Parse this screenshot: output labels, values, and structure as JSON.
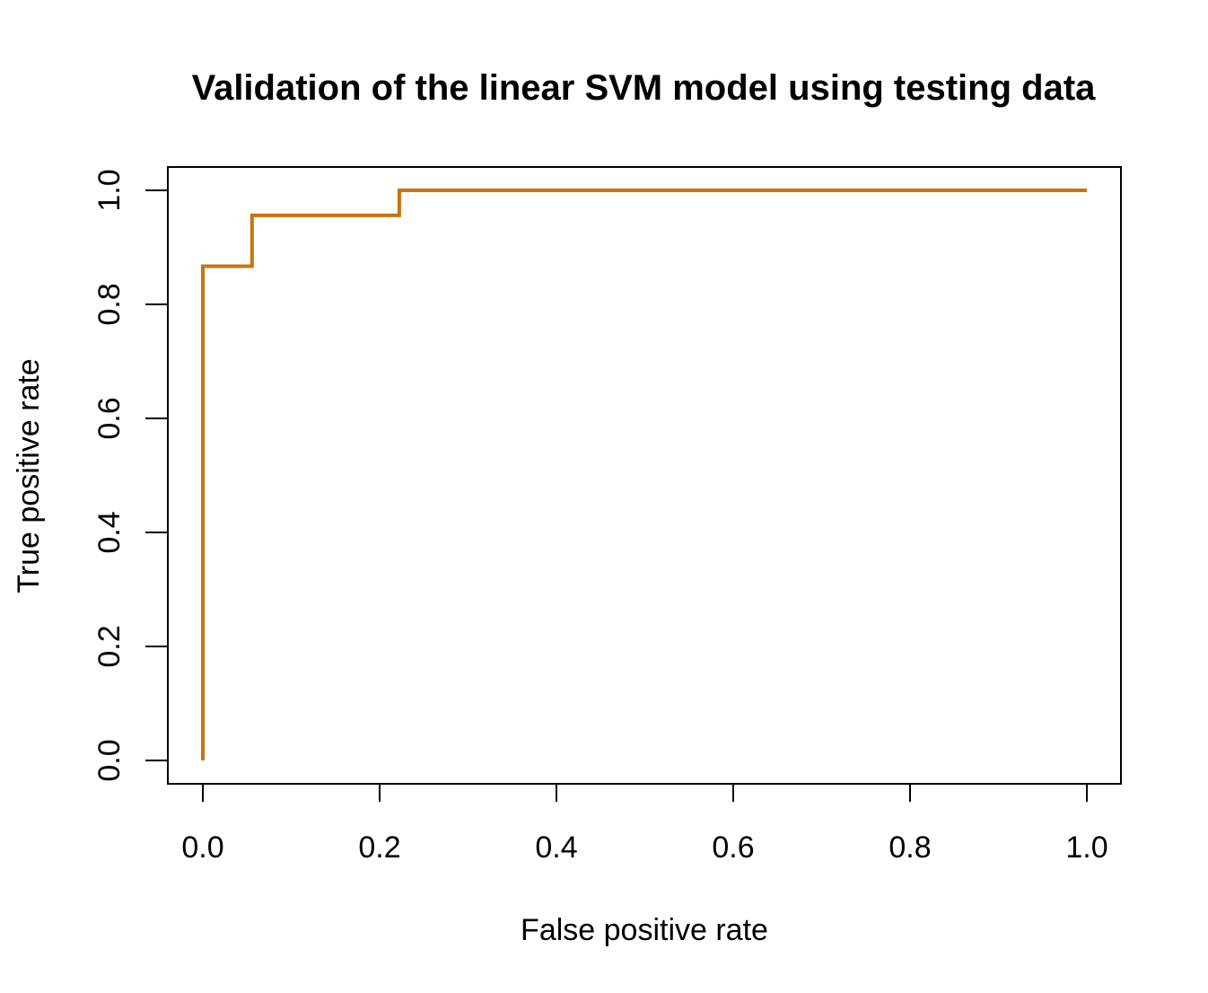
{
  "chart_data": {
    "type": "line",
    "title": "Validation of the linear SVM model using testing data",
    "xlabel": "False positive rate",
    "ylabel": "True positive rate",
    "xlim": [
      0.0,
      1.0
    ],
    "ylim": [
      0.0,
      1.0
    ],
    "xticks": [
      "0.0",
      "0.2",
      "0.4",
      "0.6",
      "0.8",
      "1.0"
    ],
    "yticks": [
      "0.0",
      "0.2",
      "0.4",
      "0.6",
      "0.8",
      "1.0"
    ],
    "grid": false,
    "legend": "none",
    "series": [
      {
        "color": "#c87410",
        "x": [
          0.0,
          0.0,
          0.0556,
          0.0556,
          0.2222,
          0.2222,
          1.0
        ],
        "y": [
          0.0,
          0.867,
          0.867,
          0.956,
          0.956,
          1.0,
          1.0
        ]
      }
    ]
  }
}
